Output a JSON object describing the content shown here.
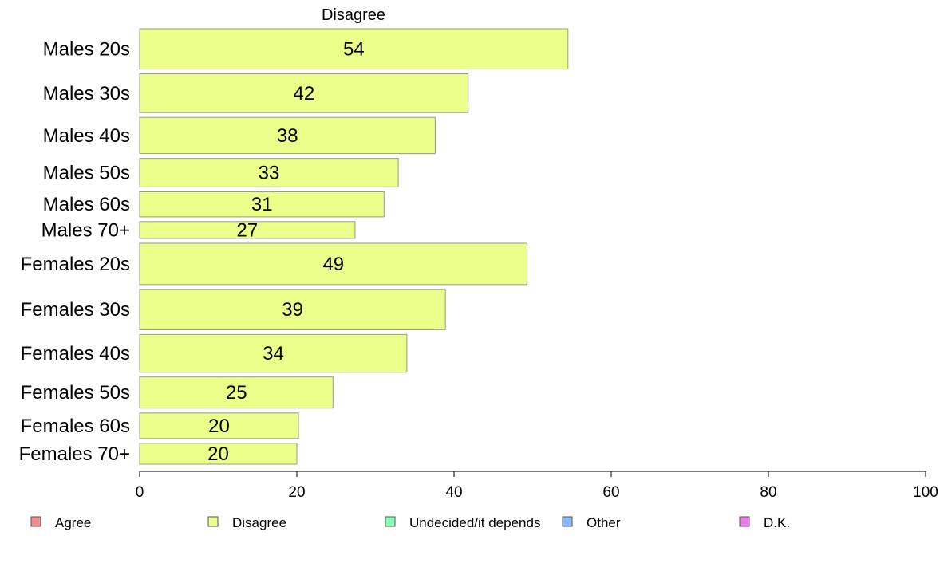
{
  "chart_data": {
    "type": "bar",
    "orientation": "horizontal",
    "title": "Disagree",
    "categories": [
      "Males 20s",
      "Males 30s",
      "Males 40s",
      "Males 50s",
      "Males 60s",
      "Males 70+",
      "Females 20s",
      "Females 30s",
      "Females 40s",
      "Females 50s",
      "Females 60s",
      "Females 70+"
    ],
    "values": [
      54,
      42,
      38,
      33,
      31,
      27,
      49,
      39,
      34,
      25,
      20,
      20
    ],
    "bar_values": [
      54.5,
      41.8,
      37.6,
      32.9,
      31.1,
      27.4,
      49.3,
      38.9,
      34.0,
      24.6,
      20.2,
      20.0
    ],
    "band_weights": [
      1.58,
      1.52,
      1.42,
      1.12,
      0.98,
      0.66,
      1.62,
      1.58,
      1.48,
      1.22,
      1.0,
      0.82
    ],
    "xlim": [
      0,
      100
    ],
    "xticks": [
      0,
      20,
      40,
      60,
      80,
      100
    ],
    "bar_color": "#ebff8a",
    "bar_stroke": "#9a9a8a",
    "legend": {
      "position": "bottom",
      "items": [
        {
          "label": "Agree",
          "color": "#f58c8c"
        },
        {
          "label": "Disagree",
          "color": "#ebff8a"
        },
        {
          "label": "Undecided/it depends",
          "color": "#8affb8"
        },
        {
          "label": "Other",
          "color": "#8ab8ff"
        },
        {
          "label": "D.K.",
          "color": "#eb7aeb"
        }
      ]
    }
  }
}
